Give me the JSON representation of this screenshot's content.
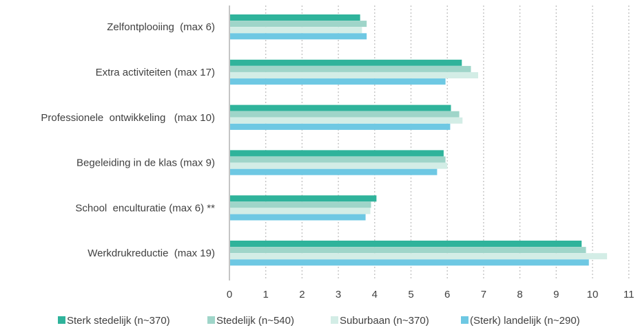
{
  "chart_data": {
    "type": "bar",
    "orientation": "horizontal",
    "categories": [
      "Zelfontplooiing  (max 6)",
      "Extra activiteiten (max 17)",
      "Professionele  ontwikkeling   (max 10)",
      "Begeleiding in de klas (max 9)",
      "School  enculturatie (max 6) **",
      "Werkdrukreductie  (max 19)"
    ],
    "series": [
      {
        "name": "Sterk stedelijk (n~370)",
        "color": "#2fb39b",
        "values": [
          3.6,
          6.4,
          6.1,
          5.9,
          4.05,
          9.7
        ]
      },
      {
        "name": "Stedelijk (n~540)",
        "color": "#9fd5c9",
        "values": [
          3.78,
          6.65,
          6.33,
          5.95,
          3.9,
          9.82
        ]
      },
      {
        "name": "Suburbaan (n~370)",
        "color": "#d3ede6",
        "values": [
          3.65,
          6.85,
          6.42,
          6.0,
          3.88,
          10.4
        ]
      },
      {
        "name": "(Sterk) landelijk (n~290)",
        "color": "#6ec8e3",
        "values": [
          3.78,
          5.95,
          6.08,
          5.72,
          3.75,
          9.9
        ]
      }
    ],
    "xlim": [
      0,
      11
    ],
    "xticks": [
      "0",
      "1",
      "2",
      "3",
      "4",
      "5",
      "6",
      "7",
      "8",
      "9",
      "10",
      "11"
    ],
    "grid": "vertical dotted",
    "legend_position": "bottom"
  }
}
